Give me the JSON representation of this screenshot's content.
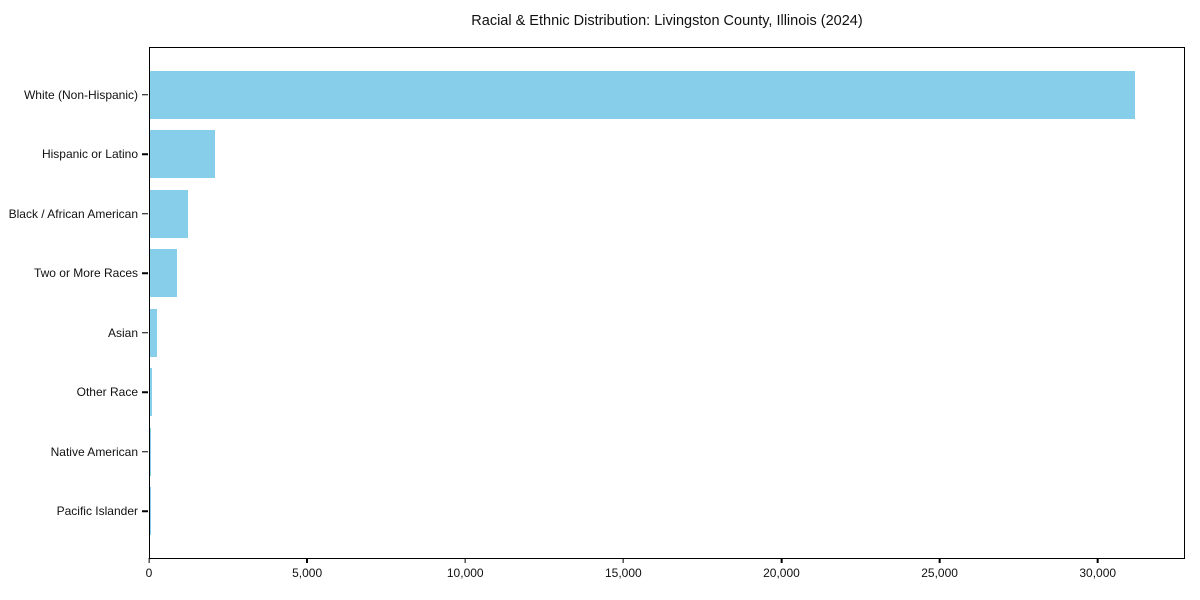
{
  "title": "Racial & Ethnic Distribution: Livingston County, Illinois (2024)",
  "chart_data": {
    "type": "bar",
    "orientation": "horizontal",
    "title": "Racial & Ethnic Distribution: Livingston County, Illinois (2024)",
    "xlabel": "",
    "ylabel": "",
    "categories": [
      "White (Non-Hispanic)",
      "Hispanic or Latino",
      "Black / African American",
      "Two or More Races",
      "Asian",
      "Other Race",
      "Native American",
      "Pacific Islander"
    ],
    "values": [
      31200,
      2050,
      1200,
      870,
      220,
      50,
      25,
      8
    ],
    "bar_color": "#87CEEB",
    "xlim": [
      0,
      32760
    ],
    "x_ticks": [
      0,
      5000,
      10000,
      15000,
      20000,
      25000,
      30000
    ],
    "x_tick_labels": [
      "0",
      "5,000",
      "10,000",
      "15,000",
      "20,000",
      "25,000",
      "30,000"
    ],
    "grid": false,
    "legend": null,
    "frame": "full-box",
    "background_color": "#ffffff",
    "text_color": "#111111"
  }
}
